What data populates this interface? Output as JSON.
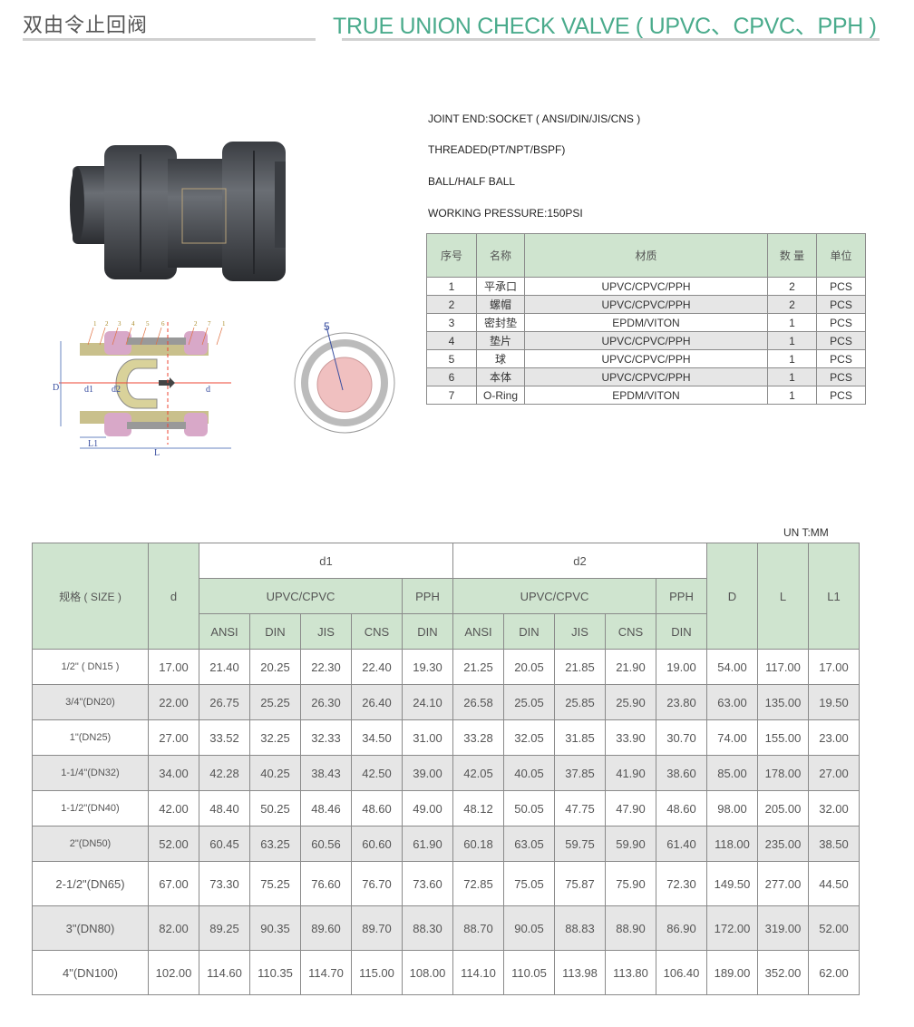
{
  "header": {
    "title_cn": "双由令止回阀",
    "title_en": "TRUE UNION CHECK VALVE ( UPVC、CPVC、PPH )",
    "accent_color": "#4aab8c"
  },
  "specs": [
    "JOINT END:SOCKET ( ANSI/DIN/JIS/CNS )",
    "THREADED(PT/NPT/BSPF)",
    "BALL/HALF BALL",
    "WORKING PRESSURE:150PSI"
  ],
  "diagram": {
    "part_callouts": [
      "1",
      "2",
      "3",
      "4",
      "5",
      "6",
      "2",
      "7",
      "1"
    ],
    "dimension_labels": {
      "D": "D",
      "d1": "d1",
      "d2": "d2",
      "d": "d",
      "L1": "L1",
      "L": "L"
    },
    "section_callout": "5"
  },
  "parts_table": {
    "headers": [
      "序号",
      "名称",
      "材质",
      "数 量",
      "单位"
    ],
    "rows": [
      [
        "1",
        "平承口",
        "UPVC/CPVC/PPH",
        "2",
        "PCS"
      ],
      [
        "2",
        "螺帽",
        "UPVC/CPVC/PPH",
        "2",
        "PCS"
      ],
      [
        "3",
        "密封垫",
        "EPDM/VITON",
        "1",
        "PCS"
      ],
      [
        "4",
        "垫片",
        "UPVC/CPVC/PPH",
        "1",
        "PCS"
      ],
      [
        "5",
        "球",
        "UPVC/CPVC/PPH",
        "1",
        "PCS"
      ],
      [
        "6",
        "本体",
        "UPVC/CPVC/PPH",
        "1",
        "PCS"
      ],
      [
        "7",
        "O-Ring",
        "EPDM/VITON",
        "1",
        "PCS"
      ]
    ]
  },
  "unit_label": "UN T:MM",
  "dimension_table": {
    "headers": {
      "size": "规格 ( SIZE )",
      "d": "d",
      "d1": "d1",
      "d2": "d2",
      "upvc_cpvc": "UPVC/CPVC",
      "pph": "PPH",
      "D": "D",
      "L": "L",
      "L1": "L1",
      "standards": [
        "ANSI",
        "DIN",
        "JIS",
        "CNS"
      ],
      "pph_std": "DIN"
    },
    "rows": [
      [
        "1/2\" ( DN15 )",
        "17.00",
        "21.40",
        "20.25",
        "22.30",
        "22.40",
        "19.30",
        "21.25",
        "20.05",
        "21.85",
        "21.90",
        "19.00",
        "54.00",
        "117.00",
        "17.00"
      ],
      [
        "3/4\"(DN20)",
        "22.00",
        "26.75",
        "25.25",
        "26.30",
        "26.40",
        "24.10",
        "26.58",
        "25.05",
        "25.85",
        "25.90",
        "23.80",
        "63.00",
        "135.00",
        "19.50"
      ],
      [
        "1\"(DN25)",
        "27.00",
        "33.52",
        "32.25",
        "32.33",
        "34.50",
        "31.00",
        "33.28",
        "32.05",
        "31.85",
        "33.90",
        "30.70",
        "74.00",
        "155.00",
        "23.00"
      ],
      [
        "1-1/4\"(DN32)",
        "34.00",
        "42.28",
        "40.25",
        "38.43",
        "42.50",
        "39.00",
        "42.05",
        "40.05",
        "37.85",
        "41.90",
        "38.60",
        "85.00",
        "178.00",
        "27.00"
      ],
      [
        "1-1/2\"(DN40)",
        "42.00",
        "48.40",
        "50.25",
        "48.46",
        "48.60",
        "49.00",
        "48.12",
        "50.05",
        "47.75",
        "47.90",
        "48.60",
        "98.00",
        "205.00",
        "32.00"
      ],
      [
        "2\"(DN50)",
        "52.00",
        "60.45",
        "63.25",
        "60.56",
        "60.60",
        "61.90",
        "60.18",
        "63.05",
        "59.75",
        "59.90",
        "61.40",
        "118.00",
        "235.00",
        "38.50"
      ],
      [
        "2-1/2\"(DN65)",
        "67.00",
        "73.30",
        "75.25",
        "76.60",
        "76.70",
        "73.60",
        "72.85",
        "75.05",
        "75.87",
        "75.90",
        "72.30",
        "149.50",
        "277.00",
        "44.50"
      ],
      [
        "3\"(DN80)",
        "82.00",
        "89.25",
        "90.35",
        "89.60",
        "89.70",
        "88.30",
        "88.70",
        "90.05",
        "88.83",
        "88.90",
        "86.90",
        "172.00",
        "319.00",
        "52.00"
      ],
      [
        "4\"(DN100)",
        "102.00",
        "114.60",
        "110.35",
        "114.70",
        "115.00",
        "108.00",
        "114.10",
        "110.05",
        "113.98",
        "113.80",
        "106.40",
        "189.00",
        "352.00",
        "62.00"
      ]
    ]
  }
}
